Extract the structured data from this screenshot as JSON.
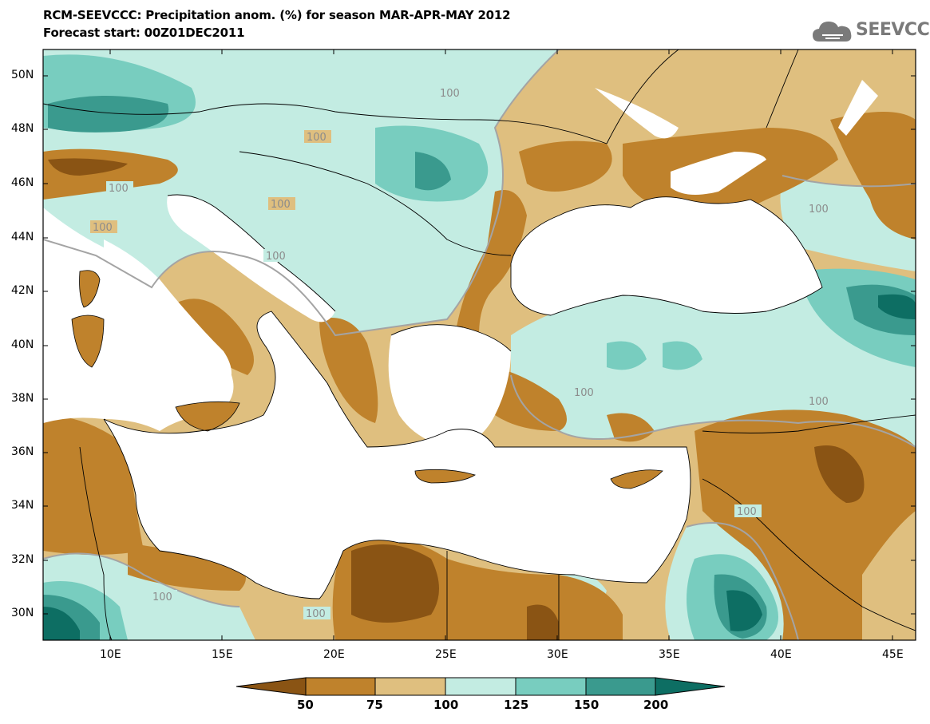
{
  "title": {
    "line1": "RCM-SEEVCCC: Precipitation anom. (%) for season MAR-APR-MAY 2012",
    "line2": "Forecast start: 00Z01DEC2011"
  },
  "logo": {
    "text": "SEEVCCC",
    "icon": "cloud-icon"
  },
  "map": {
    "lat_labels": [
      "50N",
      "48N",
      "46N",
      "44N",
      "42N",
      "40N",
      "38N",
      "36N",
      "34N",
      "32N",
      "30N"
    ],
    "lon_labels": [
      "10E",
      "15E",
      "20E",
      "25E",
      "30E",
      "35E",
      "40E",
      "45E"
    ],
    "lon_range": [
      7,
      46
    ],
    "lat_range": [
      29,
      51
    ],
    "contour_labels": [
      "100",
      "100",
      "100",
      "100",
      "100",
      "100",
      "100",
      "100",
      "100",
      "100",
      "100",
      "100"
    ]
  },
  "colorbar": {
    "labels": [
      "50",
      "75",
      "100",
      "125",
      "150",
      "200"
    ],
    "colors": [
      "#8a5414",
      "#bf822c",
      "#dfbf7f",
      "#c3ece2",
      "#78cdbf",
      "#3a9a8e",
      "#0d6e63"
    ]
  }
}
